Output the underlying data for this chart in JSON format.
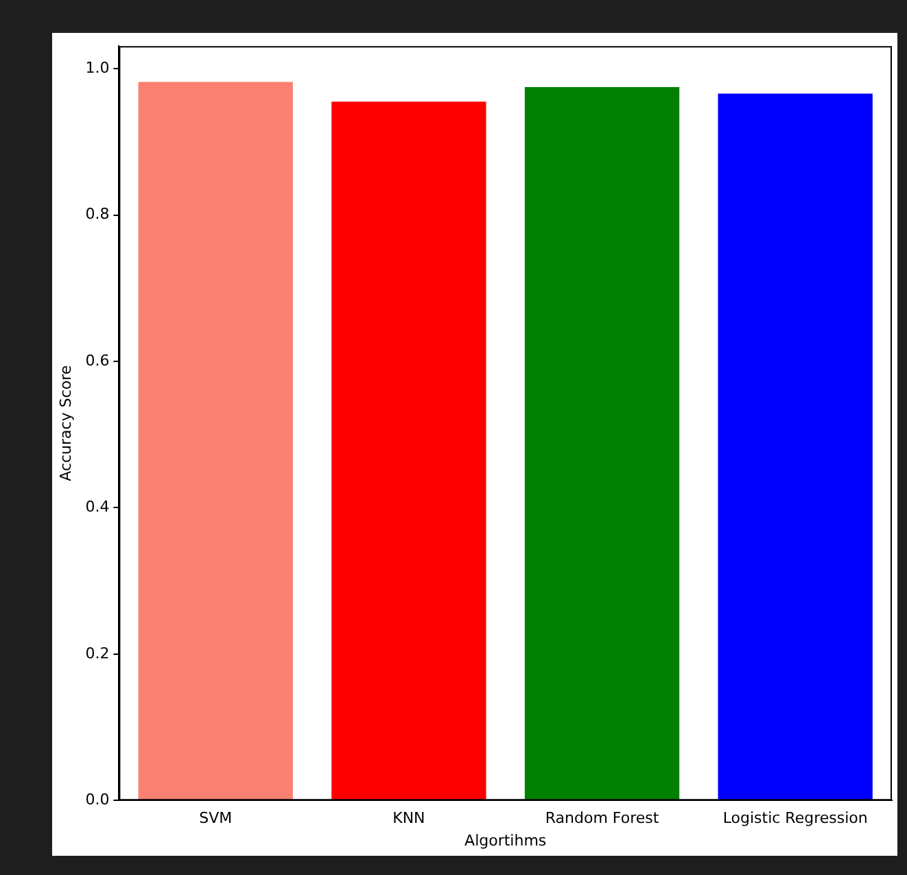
{
  "chart_data": {
    "type": "bar",
    "xlabel": "Algortihms",
    "ylabel": "Accuracy Score",
    "categories": [
      "SVM",
      "KNN",
      "Random Forest",
      "Logistic Regression"
    ],
    "values": [
      0.982,
      0.955,
      0.975,
      0.966
    ],
    "colors": [
      "#fa8072",
      "#ff0000",
      "#008000",
      "#0000ff"
    ],
    "ylim": [
      0,
      1.031
    ],
    "yticks": [
      {
        "value": 0,
        "label": "0.0"
      },
      {
        "value": 0.2,
        "label": "0.2"
      },
      {
        "value": 0.4,
        "label": "0.4"
      },
      {
        "value": 0.6,
        "label": "0.6"
      },
      {
        "value": 0.8,
        "label": "0.8"
      },
      {
        "value": 1,
        "label": "1.0"
      }
    ],
    "grid": false,
    "legend": false
  }
}
